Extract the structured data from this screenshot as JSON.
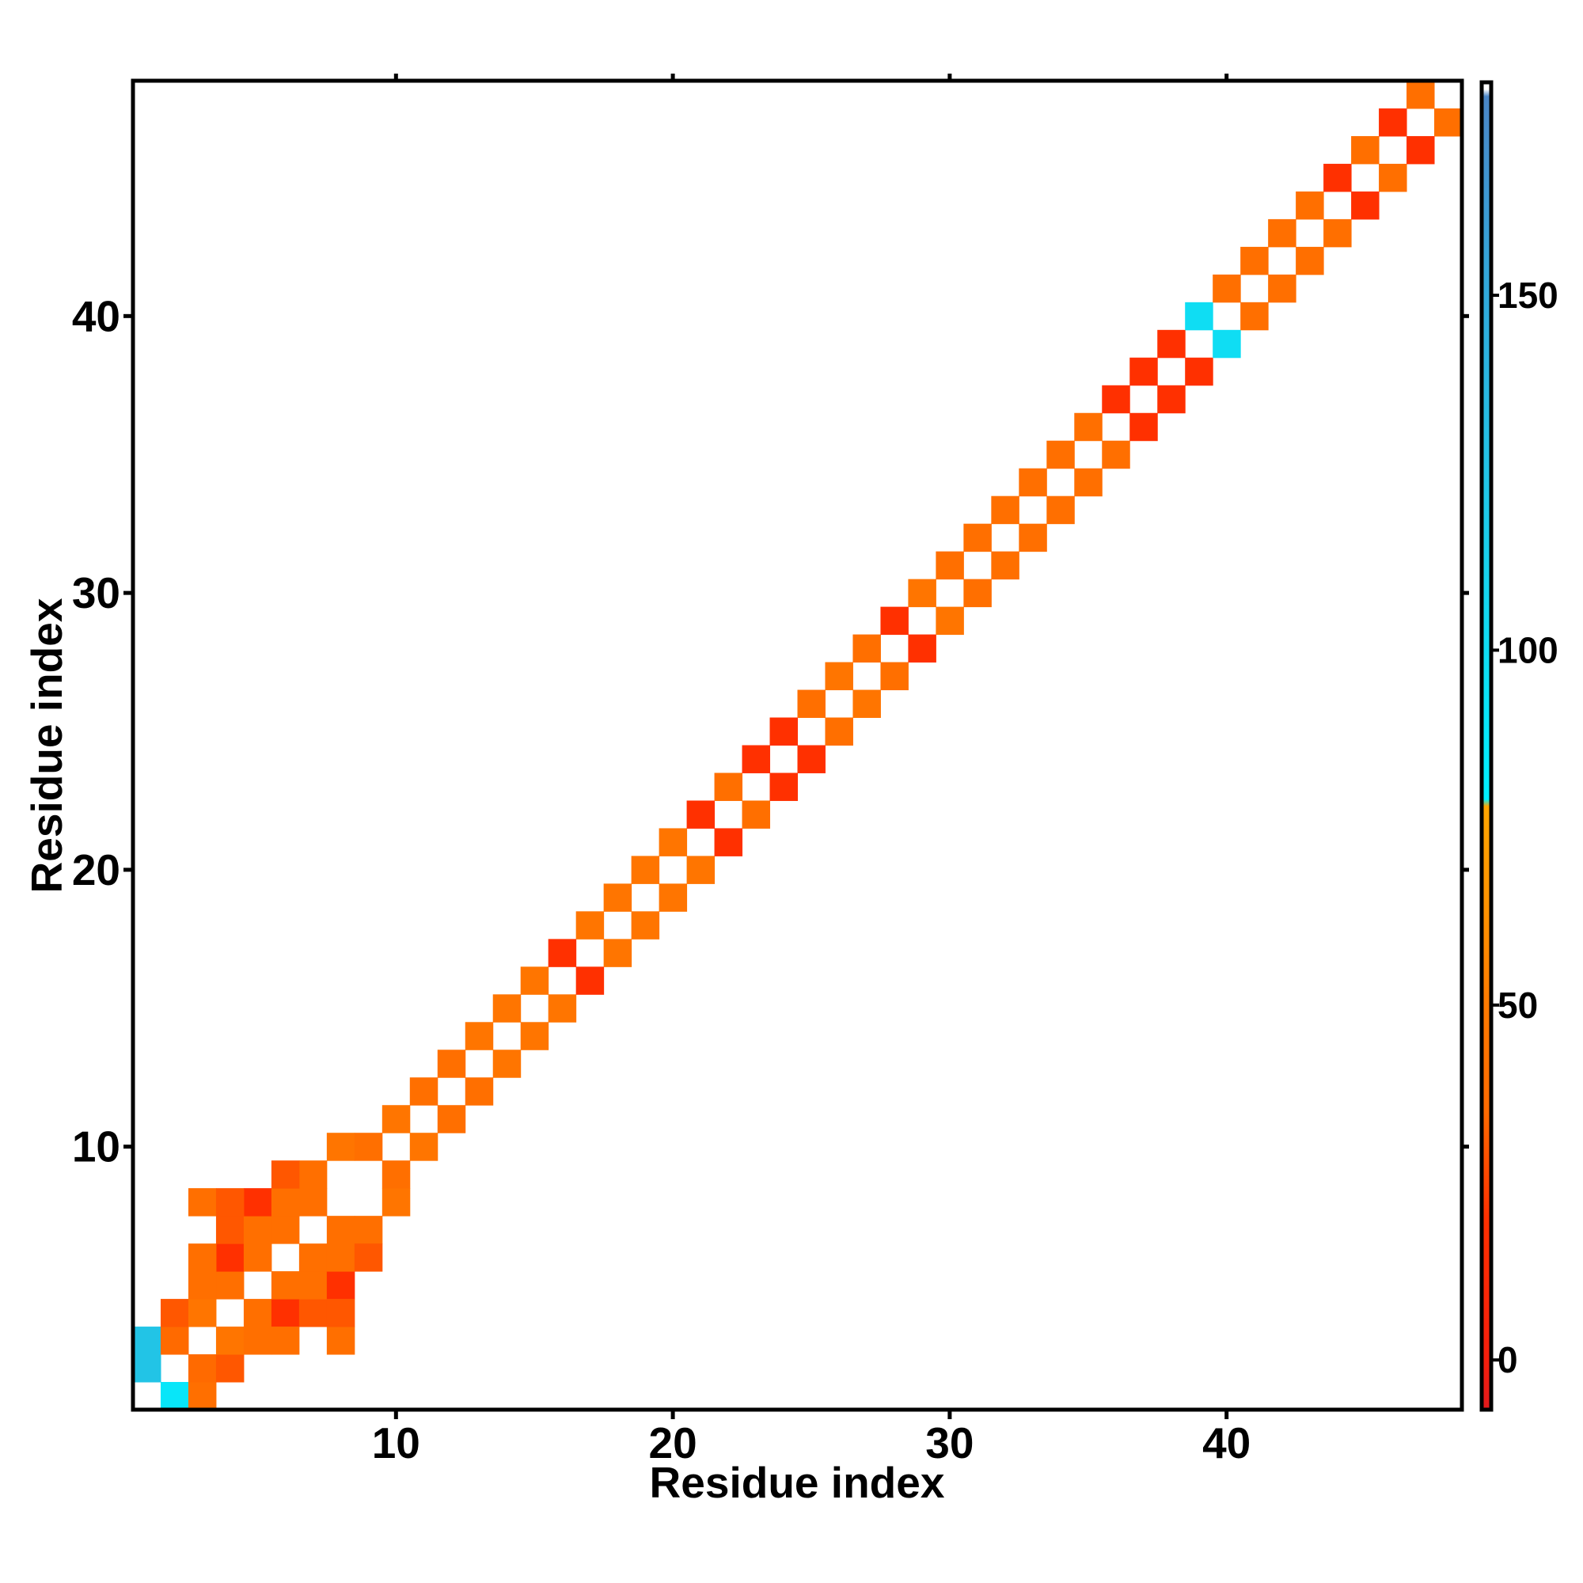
{
  "chart_data": {
    "type": "heatmap",
    "title": "",
    "xlabel": "Residue index",
    "ylabel": "Residue index",
    "xlim": [
      0.5,
      48.5
    ],
    "ylim": [
      0.5,
      48.5
    ],
    "x_ticks": [
      10,
      20,
      30,
      40
    ],
    "y_ticks": [
      10,
      20,
      30,
      40
    ],
    "colorbar": {
      "ticks": [
        0,
        50,
        100,
        150
      ],
      "range": [
        -7,
        180
      ],
      "stops": [
        {
          "value": -7,
          "color": "#E31A1C"
        },
        {
          "value": 0,
          "color": "#F61E0C"
        },
        {
          "value": 20,
          "color": "#FF3000"
        },
        {
          "value": 35,
          "color": "#FF6A00"
        },
        {
          "value": 50,
          "color": "#FF7A00"
        },
        {
          "value": 62,
          "color": "#FF9000"
        },
        {
          "value": 78,
          "color": "#FFA500"
        },
        {
          "value": 79,
          "color": "#00F0FF"
        },
        {
          "value": 105,
          "color": "#12D8F0"
        },
        {
          "value": 125,
          "color": "#22C4E6"
        },
        {
          "value": 150,
          "color": "#30AADC"
        },
        {
          "value": 178,
          "color": "#4A86C8"
        },
        {
          "value": 179,
          "color": "#FFFFFF"
        },
        {
          "value": 180,
          "color": "#FFFFFF"
        }
      ]
    },
    "cells": [
      [
        2,
        1,
        90
      ],
      [
        3,
        1,
        40
      ],
      [
        1,
        2,
        125
      ],
      [
        3,
        2,
        35
      ],
      [
        1,
        3,
        125
      ],
      [
        2,
        3,
        35
      ],
      [
        4,
        2,
        30
      ],
      [
        2,
        4,
        30
      ],
      [
        3,
        4,
        45
      ],
      [
        4,
        3,
        45
      ],
      [
        4,
        5,
        40
      ],
      [
        5,
        4,
        40
      ],
      [
        5,
        3,
        40
      ],
      [
        3,
        5,
        40
      ],
      [
        6,
        4,
        20
      ],
      [
        4,
        6,
        20
      ],
      [
        3,
        6,
        40
      ],
      [
        6,
        3,
        40
      ],
      [
        5,
        6,
        40
      ],
      [
        6,
        5,
        40
      ],
      [
        6,
        7,
        40
      ],
      [
        7,
        6,
        40
      ],
      [
        4,
        7,
        30
      ],
      [
        7,
        4,
        30
      ],
      [
        5,
        7,
        40
      ],
      [
        7,
        5,
        40
      ],
      [
        3,
        8,
        40
      ],
      [
        8,
        3,
        40
      ],
      [
        5,
        8,
        20
      ],
      [
        8,
        5,
        20
      ],
      [
        4,
        8,
        30
      ],
      [
        8,
        4,
        30
      ],
      [
        6,
        8,
        40
      ],
      [
        8,
        6,
        40
      ],
      [
        7,
        8,
        40
      ],
      [
        8,
        7,
        40
      ],
      [
        7,
        9,
        40
      ],
      [
        9,
        7,
        40
      ],
      [
        6,
        9,
        30
      ],
      [
        9,
        6,
        30
      ],
      [
        8,
        10,
        45
      ],
      [
        10,
        8,
        45
      ],
      [
        9,
        10,
        40
      ],
      [
        10,
        9,
        40
      ],
      [
        10,
        11,
        45
      ],
      [
        11,
        10,
        45
      ],
      [
        11,
        12,
        40
      ],
      [
        12,
        11,
        40
      ],
      [
        12,
        13,
        40
      ],
      [
        13,
        12,
        40
      ],
      [
        13,
        14,
        45
      ],
      [
        14,
        13,
        45
      ],
      [
        14,
        15,
        45
      ],
      [
        15,
        14,
        45
      ],
      [
        15,
        16,
        45
      ],
      [
        16,
        15,
        45
      ],
      [
        16,
        17,
        20
      ],
      [
        17,
        16,
        20
      ],
      [
        17,
        18,
        45
      ],
      [
        18,
        17,
        45
      ],
      [
        18,
        19,
        45
      ],
      [
        19,
        18,
        45
      ],
      [
        19,
        20,
        45
      ],
      [
        20,
        19,
        45
      ],
      [
        20,
        21,
        45
      ],
      [
        21,
        20,
        45
      ],
      [
        21,
        22,
        20
      ],
      [
        22,
        21,
        20
      ],
      [
        22,
        23,
        40
      ],
      [
        23,
        22,
        40
      ],
      [
        23,
        24,
        20
      ],
      [
        24,
        23,
        20
      ],
      [
        24,
        25,
        20
      ],
      [
        25,
        24,
        20
      ],
      [
        25,
        26,
        40
      ],
      [
        26,
        25,
        40
      ],
      [
        26,
        27,
        45
      ],
      [
        27,
        26,
        45
      ],
      [
        27,
        28,
        40
      ],
      [
        28,
        27,
        40
      ],
      [
        28,
        29,
        20
      ],
      [
        29,
        28,
        20
      ],
      [
        29,
        30,
        45
      ],
      [
        30,
        29,
        45
      ],
      [
        30,
        31,
        40
      ],
      [
        31,
        30,
        40
      ],
      [
        31,
        32,
        40
      ],
      [
        32,
        31,
        40
      ],
      [
        32,
        33,
        40
      ],
      [
        33,
        32,
        40
      ],
      [
        33,
        34,
        40
      ],
      [
        34,
        33,
        40
      ],
      [
        34,
        35,
        40
      ],
      [
        35,
        34,
        40
      ],
      [
        35,
        36,
        40
      ],
      [
        36,
        35,
        40
      ],
      [
        36,
        37,
        20
      ],
      [
        37,
        36,
        20
      ],
      [
        37,
        38,
        20
      ],
      [
        38,
        37,
        20
      ],
      [
        38,
        39,
        20
      ],
      [
        39,
        38,
        20
      ],
      [
        39,
        40,
        100
      ],
      [
        40,
        39,
        100
      ],
      [
        40,
        41,
        40
      ],
      [
        41,
        40,
        40
      ],
      [
        41,
        42,
        40
      ],
      [
        42,
        41,
        40
      ],
      [
        42,
        43,
        40
      ],
      [
        43,
        42,
        40
      ],
      [
        43,
        44,
        40
      ],
      [
        44,
        43,
        40
      ],
      [
        44,
        45,
        20
      ],
      [
        45,
        44,
        20
      ],
      [
        45,
        46,
        40
      ],
      [
        46,
        45,
        40
      ],
      [
        46,
        47,
        20
      ],
      [
        47,
        46,
        20
      ],
      [
        47,
        48,
        40
      ],
      [
        48,
        47,
        40
      ]
    ]
  }
}
